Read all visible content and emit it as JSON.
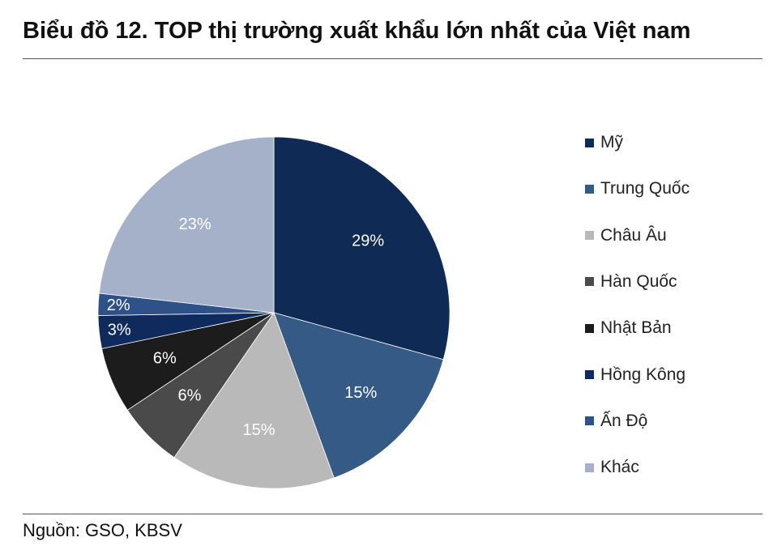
{
  "title": "Biểu đồ 12. TOP thị trường xuất khẩu lớn nhất của Việt nam",
  "source": "Nguồn: GSO, KBSV",
  "chart_data": {
    "type": "pie",
    "title": "Biểu đồ 12. TOP thị trường xuất khẩu lớn nhất của Việt nam",
    "legend_position": "right",
    "categories": [
      "Mỹ",
      "Trung Quốc",
      "Châu Âu",
      "Hàn Quốc",
      "Nhật Bản",
      "Hồng Kông",
      "Ấn Độ",
      "Khác"
    ],
    "values": [
      29,
      15,
      15,
      6,
      6,
      3,
      2,
      23
    ],
    "labels": [
      "29%",
      "15%",
      "15%",
      "6%",
      "6%",
      "3%",
      "2%",
      "23%"
    ],
    "colors": [
      "#0f2a54",
      "#345a85",
      "#b9b9b9",
      "#4a4a4a",
      "#1c1c1c",
      "#0f2a5c",
      "#2f5189",
      "#a4b1c9"
    ],
    "label_colors": [
      "#ffffff",
      "#ffffff",
      "#ffffff",
      "#ffffff",
      "#ffffff",
      "#ffffff",
      "#ffffff",
      "#ffffff"
    ]
  }
}
